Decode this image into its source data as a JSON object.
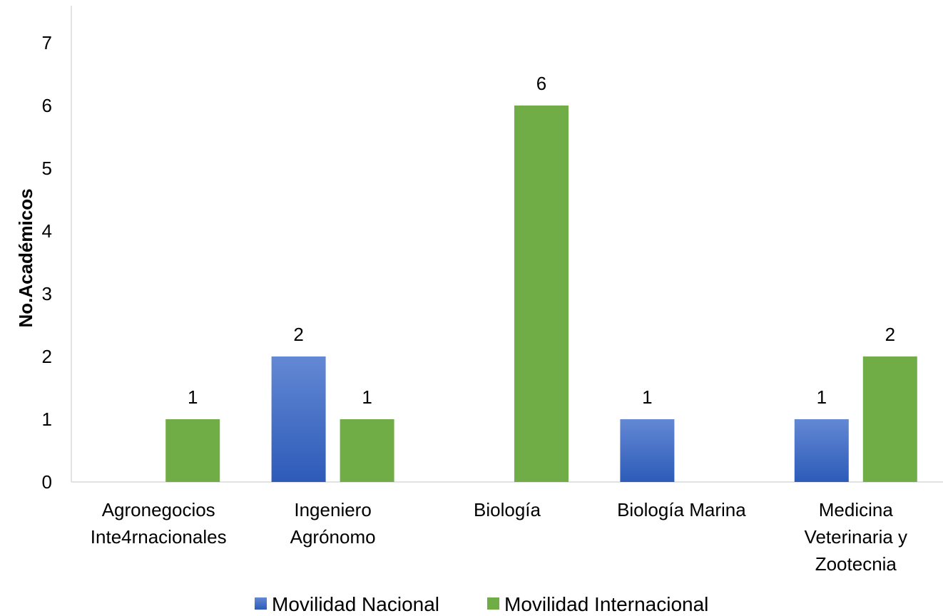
{
  "chart_data": {
    "type": "bar",
    "title": "",
    "xlabel": "",
    "ylabel": "No.Académicos",
    "ylim": [
      0,
      7
    ],
    "yticks": [
      "0",
      "1",
      "2",
      "3",
      "4",
      "5",
      "6",
      "7"
    ],
    "grid": false,
    "legend_position": "bottom",
    "categories": [
      [
        "Agronegocios",
        "Inte4rnacionales"
      ],
      [
        "Ingeniero",
        "Agrónomo"
      ],
      [
        "Biología"
      ],
      [
        "Biología Marina"
      ],
      [
        "Medicina",
        "Veterinaria y",
        "Zootecnia"
      ]
    ],
    "series": [
      {
        "name": "Movilidad Nacional",
        "values": [
          null,
          2,
          null,
          1,
          1
        ],
        "labels": [
          "",
          "2",
          "",
          "1",
          "1"
        ],
        "color": "#3a6cc8",
        "color_top": "#6388d4",
        "color_bottom": "#2d5bb8"
      },
      {
        "name": "Movilidad Internacional",
        "values": [
          1,
          1,
          6,
          null,
          2
        ],
        "labels": [
          "1",
          "1",
          "6",
          "",
          "2"
        ],
        "color": "#70ad47"
      }
    ]
  }
}
